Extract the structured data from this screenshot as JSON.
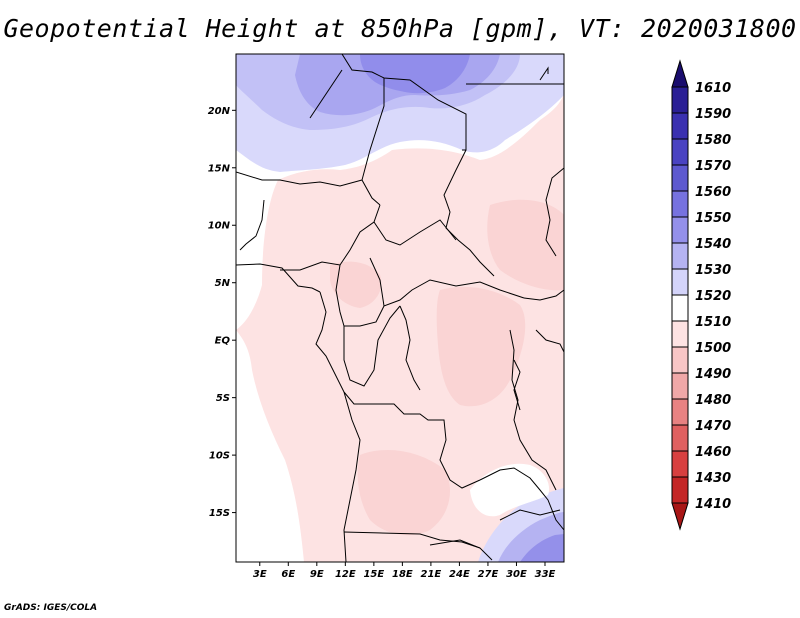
{
  "title": "Geopotential Height at 850hPa [gpm], VT: 2020031800",
  "credit": "GrADS: IGES/COLA",
  "map": {
    "lat_labels": [
      {
        "label": "20N",
        "value": 20
      },
      {
        "label": "15N",
        "value": 15
      },
      {
        "label": "10N",
        "value": 10
      },
      {
        "label": "5N",
        "value": 5
      },
      {
        "label": "EQ",
        "value": 0
      },
      {
        "label": "5S",
        "value": -5
      },
      {
        "label": "10S",
        "value": -10
      },
      {
        "label": "15S",
        "value": -15
      }
    ],
    "lon_labels": [
      {
        "label": "3E",
        "value": 3
      },
      {
        "label": "6E",
        "value": 6
      },
      {
        "label": "9E",
        "value": 9
      },
      {
        "label": "12E",
        "value": 12
      },
      {
        "label": "15E",
        "value": 15
      },
      {
        "label": "18E",
        "value": 18
      },
      {
        "label": "21E",
        "value": 21
      },
      {
        "label": "24E",
        "value": 24
      },
      {
        "label": "27E",
        "value": 27
      },
      {
        "label": "30E",
        "value": 30
      },
      {
        "label": "33E",
        "value": 33
      }
    ],
    "lon_range": [
      0.5,
      35
    ],
    "lat_range": [
      -19.3,
      24.9
    ]
  },
  "colorbar": {
    "levels": [
      "1610",
      "1590",
      "1580",
      "1570",
      "1560",
      "1550",
      "1540",
      "1530",
      "1520",
      "1510",
      "1500",
      "1490",
      "1480",
      "1470",
      "1460",
      "1430",
      "1410"
    ],
    "colors": [
      "#1a0d6e",
      "#2a1f95",
      "#3a30b0",
      "#4a43c2",
      "#5e59d0",
      "#7672df",
      "#9490ea",
      "#b5b3f2",
      "#d4d4fa",
      "#ffffff",
      "#fde3e3",
      "#f8c6c6",
      "#f0a8a8",
      "#e88282",
      "#e06060",
      "#d84040",
      "#c42626",
      "#a81616"
    ]
  }
}
